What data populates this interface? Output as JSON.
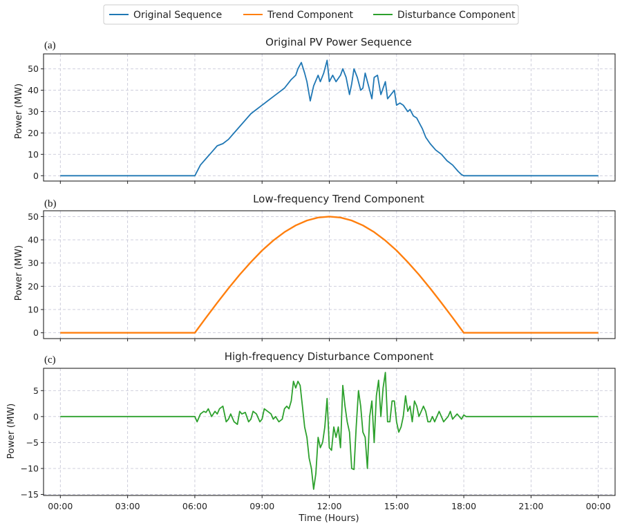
{
  "legend": {
    "entries": [
      {
        "label": "Original Sequence",
        "color": "#1f77b4"
      },
      {
        "label": "Trend Component",
        "color": "#ff7f0e"
      },
      {
        "label": "Disturbance Component",
        "color": "#2ca02c"
      }
    ]
  },
  "chart_data": [
    {
      "type": "line",
      "panel_label": "(a)",
      "title": "Original PV Power Sequence",
      "xlabel": "",
      "ylabel": "Power (MW)",
      "xlim": [
        -0.75,
        24.75
      ],
      "ylim": [
        -2.5,
        57
      ],
      "yticks": [
        0,
        10,
        20,
        30,
        40,
        50
      ],
      "xticks": [
        0,
        3,
        6,
        9,
        12,
        15,
        18,
        21,
        24
      ],
      "xtick_labels": [],
      "grid": true,
      "series": [
        {
          "name": "Original Sequence",
          "color": "#1f77b4",
          "x": [
            0,
            6,
            6.1,
            6.25,
            6.5,
            6.75,
            7,
            7.25,
            7.5,
            7.75,
            8,
            8.25,
            8.5,
            8.75,
            9,
            9.25,
            9.5,
            9.75,
            10,
            10.15,
            10.3,
            10.5,
            10.6,
            10.75,
            10.9,
            11,
            11.15,
            11.3,
            11.5,
            11.6,
            11.75,
            11.9,
            12,
            12.15,
            12.3,
            12.5,
            12.6,
            12.75,
            12.9,
            13,
            13.1,
            13.25,
            13.4,
            13.5,
            13.6,
            13.75,
            13.9,
            14,
            14.15,
            14.3,
            14.5,
            14.6,
            14.75,
            14.9,
            15,
            15.15,
            15.3,
            15.5,
            15.6,
            15.75,
            15.9,
            16,
            16.15,
            16.3,
            16.5,
            16.75,
            17,
            17.25,
            17.5,
            17.75,
            17.9,
            18,
            18.1,
            24
          ],
          "y": [
            0,
            0,
            2,
            5,
            8,
            11,
            14,
            15,
            17,
            20,
            23,
            26,
            29,
            31,
            33,
            35,
            37,
            39,
            41,
            43,
            45,
            47,
            50,
            53,
            48,
            44,
            35,
            42,
            47,
            44,
            48,
            54,
            44,
            47,
            44,
            47,
            50,
            46,
            38,
            43,
            50,
            46,
            40,
            41,
            48,
            42,
            36,
            46,
            47,
            38,
            44,
            36,
            38,
            40,
            33,
            34,
            33,
            30,
            31,
            28,
            27,
            25,
            22,
            18,
            15,
            12,
            10,
            7,
            5,
            2,
            0.5,
            0,
            0,
            0
          ]
        }
      ]
    },
    {
      "type": "line",
      "panel_label": "(b)",
      "title": "Low-frequency Trend Component",
      "xlabel": "",
      "ylabel": "Power (MW)",
      "xlim": [
        -0.75,
        24.75
      ],
      "ylim": [
        -2.5,
        52.5
      ],
      "yticks": [
        0,
        10,
        20,
        30,
        40,
        50
      ],
      "xticks": [
        0,
        3,
        6,
        9,
        12,
        15,
        18,
        21,
        24
      ],
      "xtick_labels": [],
      "grid": true,
      "series": [
        {
          "name": "Trend Component",
          "color": "#ff7f0e",
          "x": [
            0,
            6,
            6.5,
            7,
            7.5,
            8,
            8.5,
            9,
            9.5,
            10,
            10.5,
            11,
            11.5,
            12,
            12.5,
            13,
            13.5,
            14,
            14.5,
            15,
            15.5,
            16,
            16.5,
            17,
            17.5,
            18,
            24
          ],
          "y": [
            0,
            0,
            6.5,
            12.9,
            19.1,
            25,
            30.4,
            35.4,
            39.7,
            43.3,
            46.2,
            48.3,
            49.6,
            50,
            49.6,
            48.3,
            46.2,
            43.3,
            39.7,
            35.4,
            30.4,
            25,
            19.1,
            12.9,
            6.5,
            0,
            0
          ]
        }
      ]
    },
    {
      "type": "line",
      "panel_label": "(c)",
      "title": "High-frequency Disturbance Component",
      "xlabel": "Time (Hours)",
      "ylabel": "Power (MW)",
      "xlim": [
        -0.75,
        24.75
      ],
      "ylim": [
        -15.2,
        9.3
      ],
      "yticks": [
        -15,
        -10,
        -5,
        0,
        5
      ],
      "xticks": [
        0,
        3,
        6,
        9,
        12,
        15,
        18,
        21,
        24
      ],
      "xtick_labels": [
        "00:00",
        "03:00",
        "06:00",
        "09:00",
        "12:00",
        "15:00",
        "18:00",
        "21:00",
        "00:00"
      ],
      "grid": true,
      "series": [
        {
          "name": "Disturbance Component",
          "color": "#2ca02c",
          "x": [
            0,
            6,
            6.1,
            6.25,
            6.4,
            6.5,
            6.6,
            6.75,
            6.9,
            7,
            7.1,
            7.25,
            7.4,
            7.5,
            7.6,
            7.75,
            7.9,
            8,
            8.1,
            8.25,
            8.4,
            8.5,
            8.6,
            8.75,
            8.9,
            9,
            9.1,
            9.25,
            9.4,
            9.5,
            9.6,
            9.75,
            9.9,
            10,
            10.1,
            10.2,
            10.3,
            10.4,
            10.5,
            10.6,
            10.7,
            10.8,
            10.9,
            11,
            11.1,
            11.2,
            11.3,
            11.4,
            11.5,
            11.6,
            11.7,
            11.8,
            11.9,
            12,
            12.1,
            12.2,
            12.3,
            12.4,
            12.5,
            12.6,
            12.7,
            12.8,
            12.9,
            13,
            13.1,
            13.2,
            13.3,
            13.4,
            13.5,
            13.6,
            13.7,
            13.8,
            13.9,
            14,
            14.1,
            14.2,
            14.3,
            14.4,
            14.5,
            14.6,
            14.7,
            14.8,
            14.9,
            15,
            15.1,
            15.2,
            15.3,
            15.4,
            15.5,
            15.6,
            15.7,
            15.8,
            15.9,
            16,
            16.1,
            16.2,
            16.3,
            16.4,
            16.5,
            16.6,
            16.7,
            16.8,
            16.9,
            17,
            17.1,
            17.2,
            17.3,
            17.4,
            17.5,
            17.6,
            17.7,
            17.8,
            17.9,
            18,
            18.1,
            24
          ],
          "y": [
            0,
            0,
            -1,
            0.5,
            1,
            0.8,
            1.5,
            0,
            1,
            0.5,
            1.5,
            2,
            -1,
            -0.5,
            0.5,
            -1,
            -1.5,
            1,
            0.5,
            0.8,
            -1,
            -0.5,
            1,
            0.5,
            -1,
            -0.5,
            1.5,
            1,
            0.5,
            -0.5,
            0,
            -1,
            -0.5,
            1.5,
            2,
            1.5,
            3,
            6.8,
            5.5,
            6.8,
            6,
            2,
            -2,
            -4,
            -8,
            -10,
            -14,
            -11,
            -4,
            -6,
            -5,
            -2,
            3.5,
            -6,
            -6.5,
            -2,
            -4,
            -2,
            -6,
            6,
            2,
            -1,
            -3,
            -10,
            -10.2,
            -2,
            5,
            2,
            -3,
            -4,
            -10,
            0,
            3,
            -5,
            4,
            7,
            0,
            5.5,
            8.5,
            -1,
            -1,
            3,
            3,
            -1,
            -3,
            -2,
            0,
            4,
            1,
            2,
            -1,
            3,
            2,
            0,
            1,
            2,
            1,
            -1,
            -1,
            0,
            -1,
            0,
            1,
            0,
            -1,
            -0.5,
            0,
            1,
            -0.5,
            0,
            0.5,
            0,
            -0.5,
            0.3,
            0,
            0
          ]
        }
      ]
    }
  ]
}
